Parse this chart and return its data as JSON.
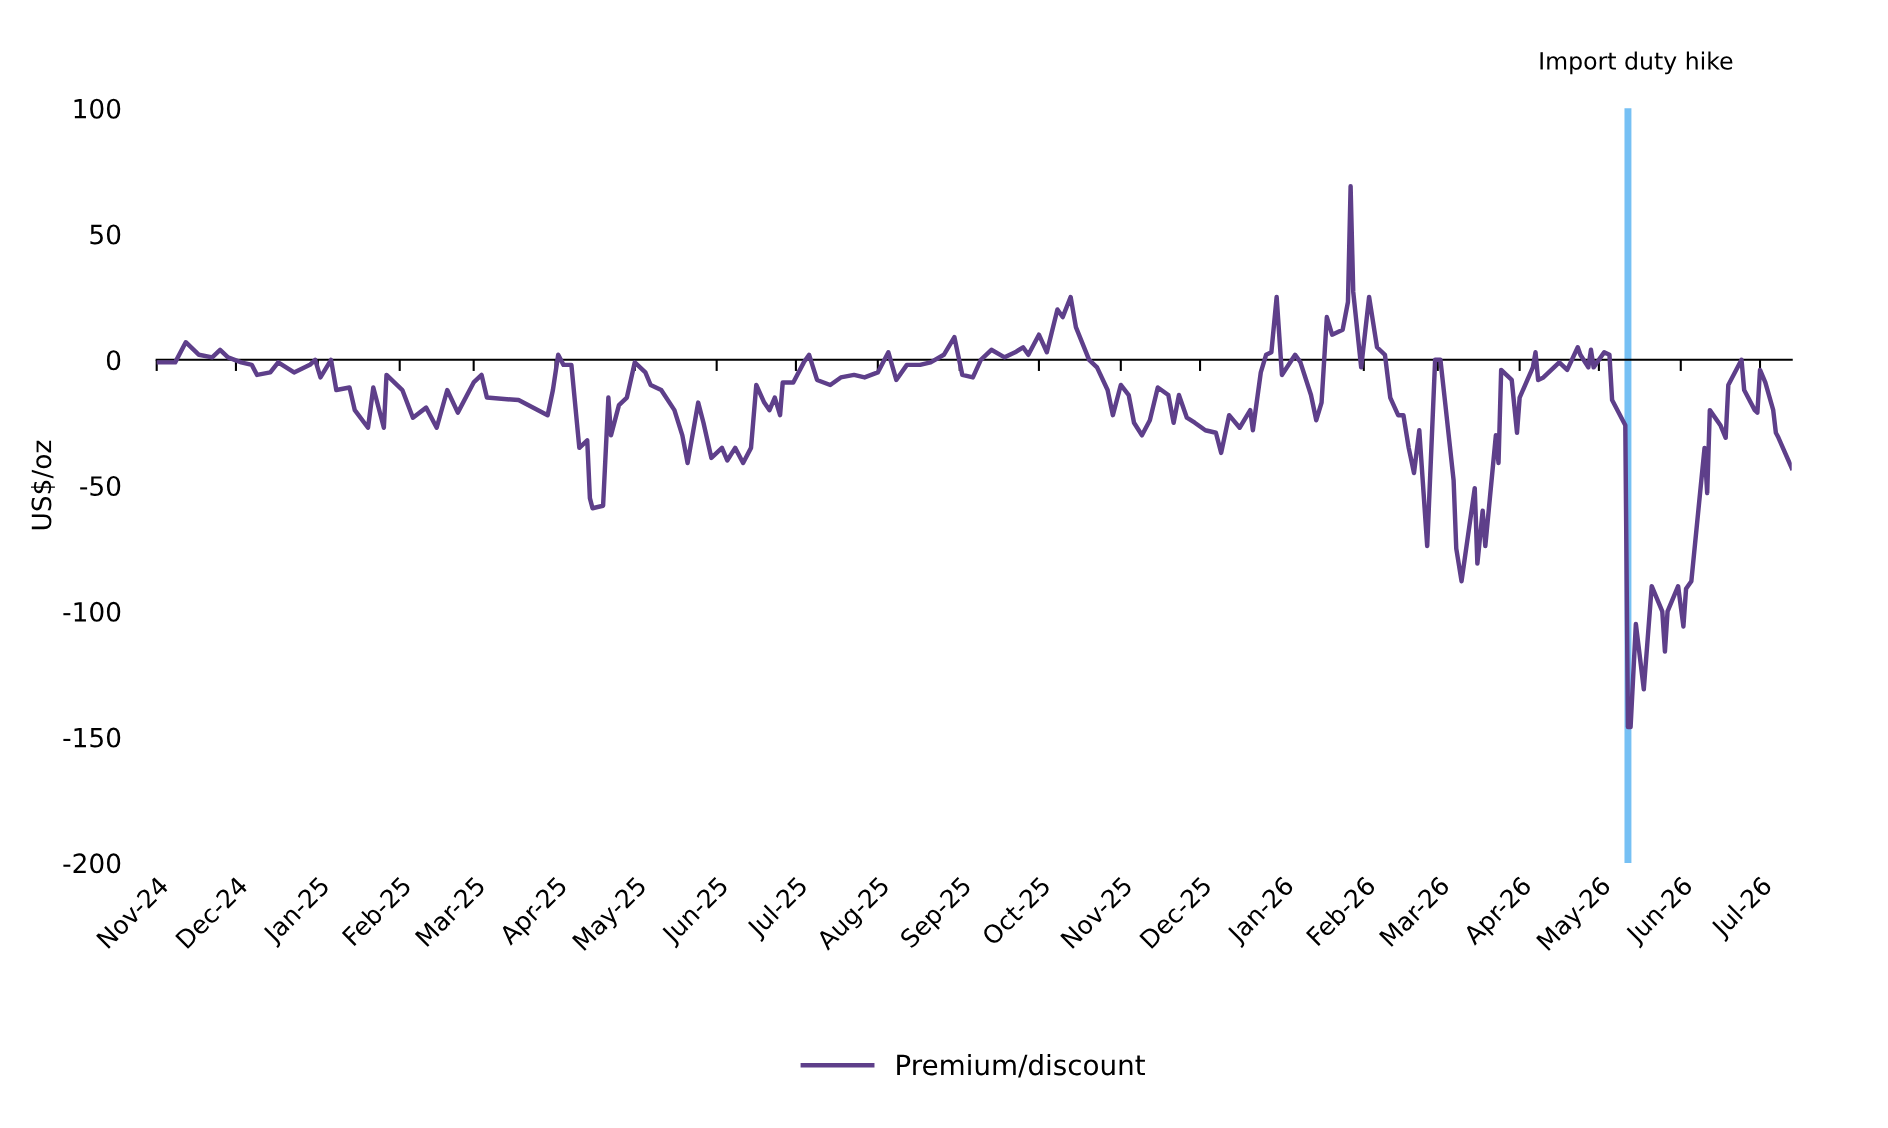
{
  "chart_data": {
    "type": "line",
    "ylabel": "US$/oz",
    "xlim": [
      "2024-11-01",
      "2026-07-13"
    ],
    "ylim": [
      -200,
      100
    ],
    "yticks": [
      -200,
      -150,
      -100,
      -50,
      0,
      50,
      100
    ],
    "xticks": [
      {
        "value": "2024-11-01",
        "label": "Nov-24"
      },
      {
        "value": "2024-12-01",
        "label": "Dec-24"
      },
      {
        "value": "2025-01-01",
        "label": "Jan-25"
      },
      {
        "value": "2025-02-01",
        "label": "Feb-25"
      },
      {
        "value": "2025-03-01",
        "label": "Mar-25"
      },
      {
        "value": "2025-04-01",
        "label": "Apr-25"
      },
      {
        "value": "2025-05-01",
        "label": "May-25"
      },
      {
        "value": "2025-06-01",
        "label": "Jun-25"
      },
      {
        "value": "2025-07-01",
        "label": "Jul-25"
      },
      {
        "value": "2025-08-01",
        "label": "Aug-25"
      },
      {
        "value": "2025-09-01",
        "label": "Sep-25"
      },
      {
        "value": "2025-10-01",
        "label": "Oct-25"
      },
      {
        "value": "2025-11-01",
        "label": "Nov-25"
      },
      {
        "value": "2025-12-01",
        "label": "Dec-25"
      },
      {
        "value": "2026-01-01",
        "label": "Jan-26"
      },
      {
        "value": "2026-02-01",
        "label": "Feb-26"
      },
      {
        "value": "2026-03-01",
        "label": "Mar-26"
      },
      {
        "value": "2026-04-01",
        "label": "Apr-26"
      },
      {
        "value": "2026-05-01",
        "label": "May-26"
      },
      {
        "value": "2026-06-01",
        "label": "Jun-26"
      },
      {
        "value": "2026-07-01",
        "label": "Jul-26"
      }
    ],
    "legend": "bottom",
    "marker": "none",
    "line_style": "solid",
    "ref_lines": [
      {
        "axis": "x",
        "value": "2026-05-12",
        "label": "Import duty hike",
        "color": "#76c0f4"
      }
    ],
    "x": [
      "2024-11-01",
      "2024-11-08",
      "2024-11-12",
      "2024-11-17",
      "2024-11-22",
      "2024-11-25",
      "2024-11-28",
      "2024-12-03",
      "2024-12-07",
      "2024-12-09",
      "2024-12-14",
      "2024-12-17",
      "2024-12-23",
      "2024-12-29",
      "2024-12-31",
      "2025-01-02",
      "2025-01-06",
      "2025-01-08",
      "2025-01-13",
      "2025-01-15",
      "2025-01-20",
      "2025-01-22",
      "2025-01-26",
      "2025-01-27",
      "2025-02-02",
      "2025-02-06",
      "2025-02-11",
      "2025-02-15",
      "2025-02-19",
      "2025-02-23",
      "2025-03-01",
      "2025-03-04",
      "2025-03-06",
      "2025-03-18",
      "2025-03-29",
      "2025-03-31",
      "2025-04-02",
      "2025-04-04",
      "2025-04-07",
      "2025-04-10",
      "2025-04-13",
      "2025-04-14",
      "2025-04-15",
      "2025-04-19",
      "2025-04-21",
      "2025-04-22",
      "2025-04-25",
      "2025-04-28",
      "2025-05-01",
      "2025-05-05",
      "2025-05-07",
      "2025-05-11",
      "2025-05-16",
      "2025-05-19",
      "2025-05-21",
      "2025-05-25",
      "2025-05-27",
      "2025-05-30",
      "2025-06-03",
      "2025-06-05",
      "2025-06-08",
      "2025-06-11",
      "2025-06-14",
      "2025-06-16",
      "2025-06-19",
      "2025-06-21",
      "2025-06-23",
      "2025-06-25",
      "2025-06-26",
      "2025-06-30",
      "2025-07-04",
      "2025-07-06",
      "2025-07-09",
      "2025-07-14",
      "2025-07-18",
      "2025-07-23",
      "2025-07-27",
      "2025-08-01",
      "2025-08-05",
      "2025-08-08",
      "2025-08-12",
      "2025-08-17",
      "2025-08-21",
      "2025-08-26",
      "2025-08-30",
      "2025-09-02",
      "2025-09-06",
      "2025-09-09",
      "2025-09-13",
      "2025-09-18",
      "2025-09-22",
      "2025-09-25",
      "2025-09-27",
      "2025-10-01",
      "2025-10-04",
      "2025-10-08",
      "2025-10-10",
      "2025-10-13",
      "2025-10-15",
      "2025-10-20",
      "2025-10-23",
      "2025-10-27",
      "2025-10-29",
      "2025-11-01",
      "2025-11-04",
      "2025-11-06",
      "2025-11-09",
      "2025-11-12",
      "2025-11-15",
      "2025-11-19",
      "2025-11-21",
      "2025-11-23",
      "2025-11-26",
      "2025-11-29",
      "2025-12-03",
      "2025-12-07",
      "2025-12-09",
      "2025-12-12",
      "2025-12-16",
      "2025-12-20",
      "2025-12-21",
      "2025-12-24",
      "2025-12-26",
      "2025-12-28",
      "2025-12-30",
      "2026-01-01",
      "2026-01-06",
      "2026-01-08",
      "2026-01-12",
      "2026-01-14",
      "2026-01-16",
      "2026-01-18",
      "2026-01-20",
      "2026-01-24",
      "2026-01-26",
      "2026-01-27",
      "2026-01-28",
      "2026-01-31",
      "2026-02-03",
      "2026-02-06",
      "2026-02-09",
      "2026-02-11",
      "2026-02-14",
      "2026-02-16",
      "2026-02-18",
      "2026-02-20",
      "2026-02-22",
      "2026-02-25",
      "2026-02-28",
      "2026-03-02",
      "2026-03-04",
      "2026-03-07",
      "2026-03-08",
      "2026-03-10",
      "2026-03-15",
      "2026-03-16",
      "2026-03-18",
      "2026-03-19",
      "2026-03-23",
      "2026-03-24",
      "2026-03-25",
      "2026-03-29",
      "2026-03-31",
      "2026-04-01",
      "2026-04-06",
      "2026-04-07",
      "2026-04-08",
      "2026-04-10",
      "2026-04-14",
      "2026-04-16",
      "2026-04-19",
      "2026-04-23",
      "2026-04-24",
      "2026-04-27",
      "2026-04-28",
      "2026-04-29",
      "2026-05-03",
      "2026-05-05",
      "2026-05-06",
      "2026-05-10",
      "2026-05-11",
      "2026-05-12",
      "2026-05-13",
      "2026-05-15",
      "2026-05-18",
      "2026-05-21",
      "2026-05-25",
      "2026-05-26",
      "2026-05-27",
      "2026-05-31",
      "2026-06-02",
      "2026-06-03",
      "2026-06-05",
      "2026-06-10",
      "2026-06-11",
      "2026-06-12",
      "2026-06-16",
      "2026-06-18",
      "2026-06-19",
      "2026-06-24",
      "2026-06-25",
      "2026-06-29",
      "2026-06-30",
      "2026-07-01",
      "2026-07-03",
      "2026-07-06",
      "2026-07-07",
      "2026-07-08",
      "2026-07-13"
    ],
    "series": [
      {
        "name": "Premium/discount",
        "color": "#5e3f8a",
        "values": [
          -1,
          -1,
          7,
          2,
          1,
          4,
          1,
          -1,
          -2,
          -6,
          -5,
          -1,
          -5,
          -2,
          0,
          -7,
          0,
          -12,
          -11,
          -20,
          -27,
          -11,
          -27,
          -6,
          -12,
          -23,
          -19,
          -27,
          -12,
          -21,
          -9,
          -6,
          -15,
          -16,
          -22,
          -12,
          2,
          -2,
          -2,
          -35,
          -32,
          -55,
          -59,
          -58,
          -15,
          -30,
          -18,
          -15,
          -1,
          -5,
          -10,
          -12,
          -20,
          -30,
          -41,
          -17,
          -25,
          -39,
          -35,
          -40,
          -35,
          -41,
          -35,
          -10,
          -17,
          -20,
          -15,
          -22,
          -9,
          -9,
          -1,
          2,
          -8,
          -10,
          -7,
          -6,
          -7,
          -5,
          3,
          -8,
          -2,
          -2,
          -1,
          2,
          9,
          -6,
          -7,
          0,
          4,
          1,
          3,
          5,
          2,
          10,
          3,
          20,
          17,
          25,
          13,
          0,
          -3,
          -12,
          -22,
          -10,
          -14,
          -25,
          -30,
          -24,
          -11,
          -14,
          -25,
          -14,
          -23,
          -25,
          -28,
          -29,
          -37,
          -22,
          -27,
          -20,
          -28,
          -5,
          2,
          3,
          25,
          -6,
          2,
          -1,
          -14,
          -24,
          -17,
          17,
          10,
          12,
          23,
          69,
          27,
          -3,
          25,
          5,
          2,
          -15,
          -22,
          -22,
          -35,
          -45,
          -28,
          -74,
          0,
          0,
          -19,
          -48,
          -75,
          -88,
          -51,
          -81,
          -60,
          -74,
          -30,
          -41,
          -4,
          -8,
          -29,
          -15,
          -3,
          3,
          -8,
          -7,
          -3,
          -1,
          -4,
          5,
          2,
          -3,
          4,
          -3,
          3,
          2,
          -16,
          -24,
          -26,
          -146,
          -146,
          -105,
          -131,
          -90,
          -100,
          -116,
          -100,
          -90,
          -106,
          -91,
          -88,
          -35,
          -53,
          -20,
          -26,
          -31,
          -10,
          0,
          -12,
          -20,
          -21,
          -4,
          -9,
          -20,
          -29,
          -31,
          -43
        ]
      }
    ]
  }
}
